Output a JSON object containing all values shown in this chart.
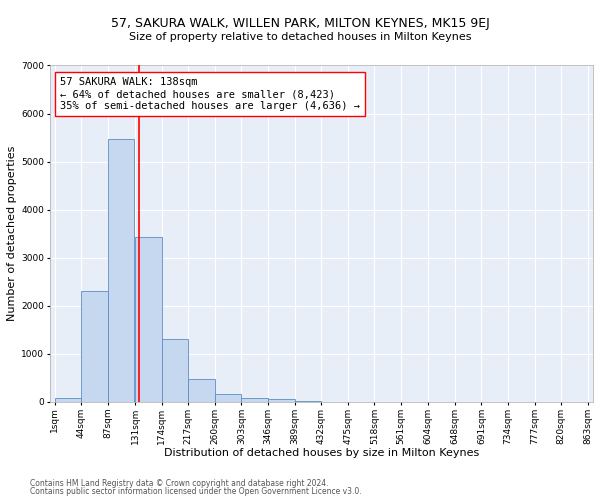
{
  "title": "57, SAKURA WALK, WILLEN PARK, MILTON KEYNES, MK15 9EJ",
  "subtitle": "Size of property relative to detached houses in Milton Keynes",
  "xlabel": "Distribution of detached houses by size in Milton Keynes",
  "ylabel": "Number of detached properties",
  "footnote1": "Contains HM Land Registry data © Crown copyright and database right 2024.",
  "footnote2": "Contains public sector information licensed under the Open Government Licence v3.0.",
  "bar_left_edges": [
    1,
    44,
    87,
    131,
    174,
    217,
    260,
    303,
    346,
    389,
    432,
    475,
    518,
    561,
    604,
    648,
    691,
    734,
    777,
    820
  ],
  "bar_heights": [
    90,
    2300,
    5480,
    3430,
    1320,
    470,
    165,
    90,
    55,
    30,
    0,
    0,
    0,
    0,
    0,
    0,
    0,
    0,
    0,
    0
  ],
  "bin_width": 43,
  "bar_color": "#c5d8f0",
  "bar_edge_color": "#5b8ec4",
  "vline_x": 138,
  "vline_color": "red",
  "annotation_text": "57 SAKURA WALK: 138sqm\n← 64% of detached houses are smaller (8,423)\n35% of semi-detached houses are larger (4,636) →",
  "annotation_bbox_color": "white",
  "annotation_bbox_edge": "red",
  "xlim_min": 1,
  "xlim_max": 863,
  "ylim_min": 0,
  "ylim_max": 7000,
  "yticks": [
    0,
    1000,
    2000,
    3000,
    4000,
    5000,
    6000,
    7000
  ],
  "xtick_labels": [
    "1sqm",
    "44sqm",
    "87sqm",
    "131sqm",
    "174sqm",
    "217sqm",
    "260sqm",
    "303sqm",
    "346sqm",
    "389sqm",
    "432sqm",
    "475sqm",
    "518sqm",
    "561sqm",
    "604sqm",
    "648sqm",
    "691sqm",
    "734sqm",
    "777sqm",
    "820sqm",
    "863sqm"
  ],
  "xtick_positions": [
    1,
    44,
    87,
    131,
    174,
    217,
    260,
    303,
    346,
    389,
    432,
    475,
    518,
    561,
    604,
    648,
    691,
    734,
    777,
    820,
    863
  ],
  "title_fontsize": 9,
  "subtitle_fontsize": 8,
  "axis_label_fontsize": 8,
  "tick_fontsize": 6.5,
  "annotation_fontsize": 7.5,
  "bg_color": "#e8eef8",
  "fig_bg_color": "#ffffff",
  "grid_color": "#ffffff",
  "footnote_fontsize": 5.5,
  "footnote_color": "#555555"
}
